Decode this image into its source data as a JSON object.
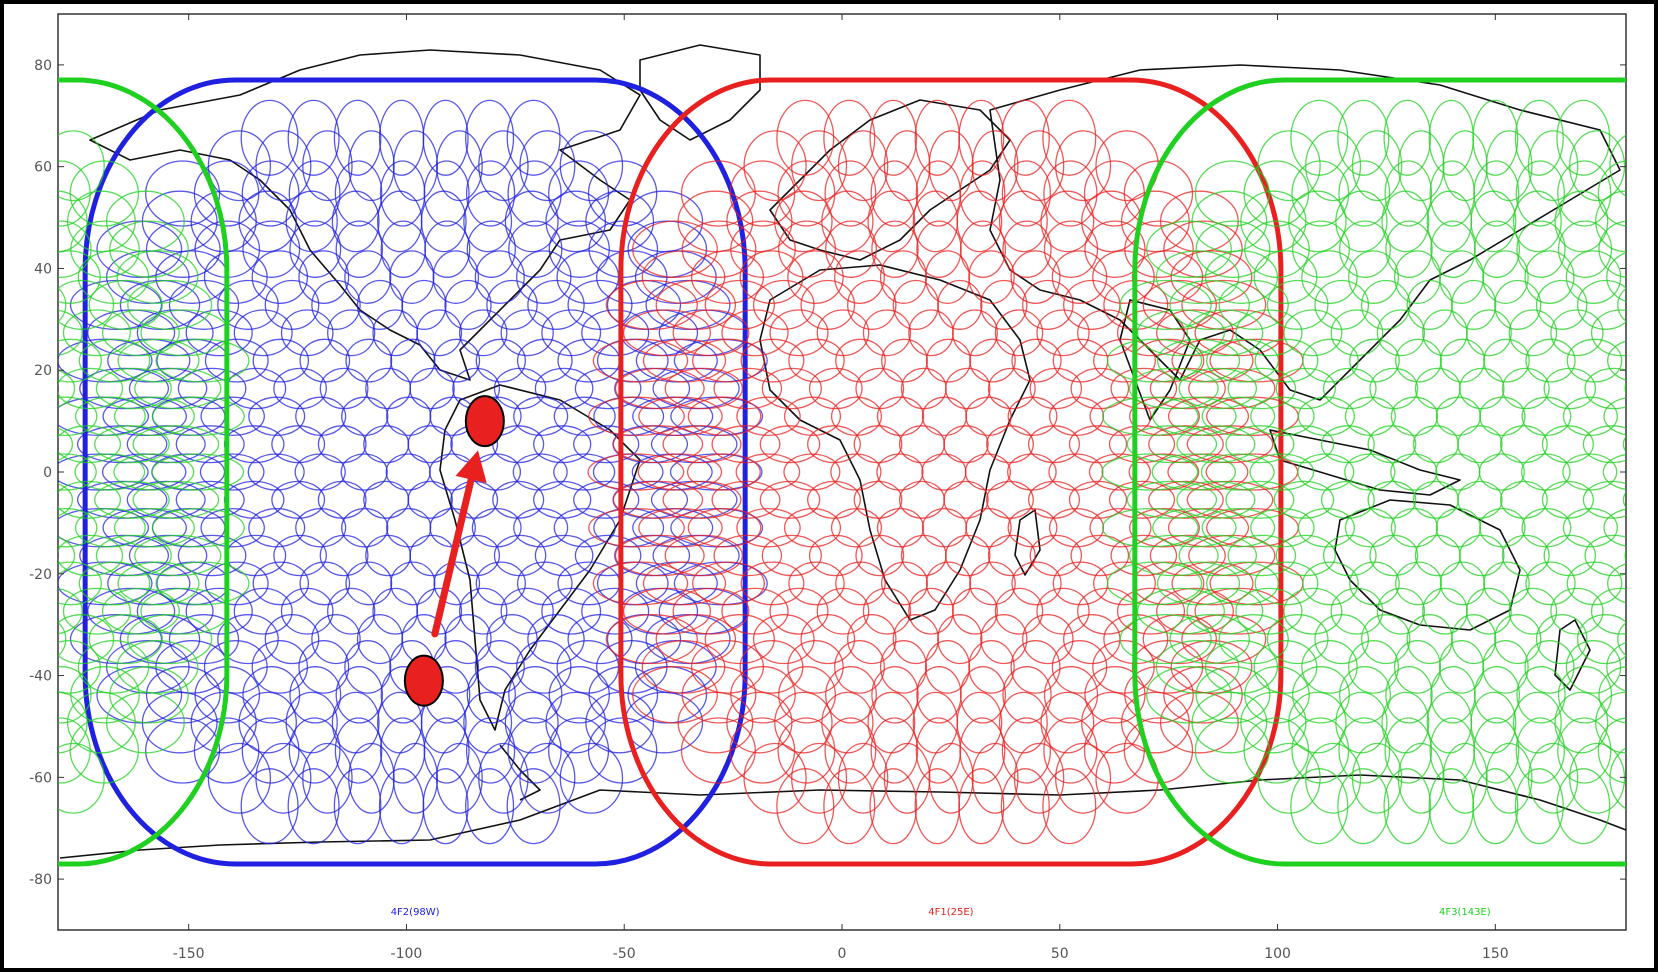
{
  "map": {
    "x_ticks": [
      "-150",
      "-100",
      "-50",
      "0",
      "50",
      "100",
      "150"
    ],
    "y_ticks": [
      "80",
      "60",
      "40",
      "20",
      "0",
      "-20",
      "-40",
      "-60",
      "-80"
    ],
    "footprints": [
      {
        "label": "4F2(98W)",
        "color": "#2020e0",
        "center_lon": -98
      },
      {
        "label": "4F1(25E)",
        "color": "#e82020",
        "center_lon": 25
      },
      {
        "label": "4F3(143E)",
        "color": "#20d020",
        "center_lon": 143
      }
    ],
    "move_start": {
      "lon": -96,
      "lat": -41
    },
    "move_end": {
      "lon": -82,
      "lat": 10
    },
    "colors": {
      "blue": "#2020e0",
      "red": "#e82020",
      "green": "#20d020",
      "coast": "#111111"
    }
  }
}
